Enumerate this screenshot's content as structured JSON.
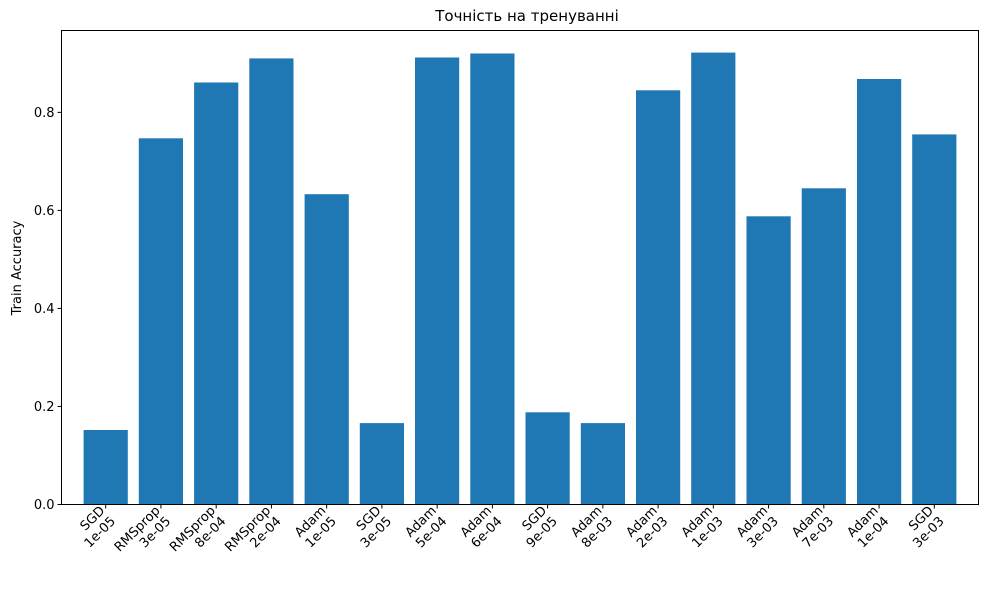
{
  "chart_data": {
    "type": "bar",
    "title": "Точність на тренуванні",
    "xlabel": "",
    "ylabel": "Train Accuracy",
    "categories": [
      [
        "SGD",
        "1e-05"
      ],
      [
        "RMSprop",
        "3e-05"
      ],
      [
        "RMSprop",
        "8e-04"
      ],
      [
        "RMSprop",
        "2e-04"
      ],
      [
        "Adam",
        "1e-05"
      ],
      [
        "SGD",
        "3e-05"
      ],
      [
        "Adam",
        "5e-04"
      ],
      [
        "Adam",
        "6e-04"
      ],
      [
        "SGD",
        "9e-05"
      ],
      [
        "Adam",
        "8e-03"
      ],
      [
        "Adam",
        "2e-03"
      ],
      [
        "Adam",
        "1e-03"
      ],
      [
        "Adam",
        "3e-03"
      ],
      [
        "Adam",
        "7e-03"
      ],
      [
        "Adam",
        "1e-04"
      ],
      [
        "SGD",
        "3e-03"
      ]
    ],
    "values": [
      0.152,
      0.747,
      0.861,
      0.91,
      0.633,
      0.166,
      0.912,
      0.92,
      0.188,
      0.166,
      0.845,
      0.922,
      0.588,
      0.645,
      0.868,
      0.755
    ],
    "ylim": [
      0,
      0.967
    ],
    "yticks": [
      "0.0",
      "0.2",
      "0.4",
      "0.6",
      "0.8"
    ],
    "ytick_values": [
      0.0,
      0.2,
      0.4,
      0.6,
      0.8
    ],
    "grid": false,
    "bar_color": "#1f77b4"
  }
}
